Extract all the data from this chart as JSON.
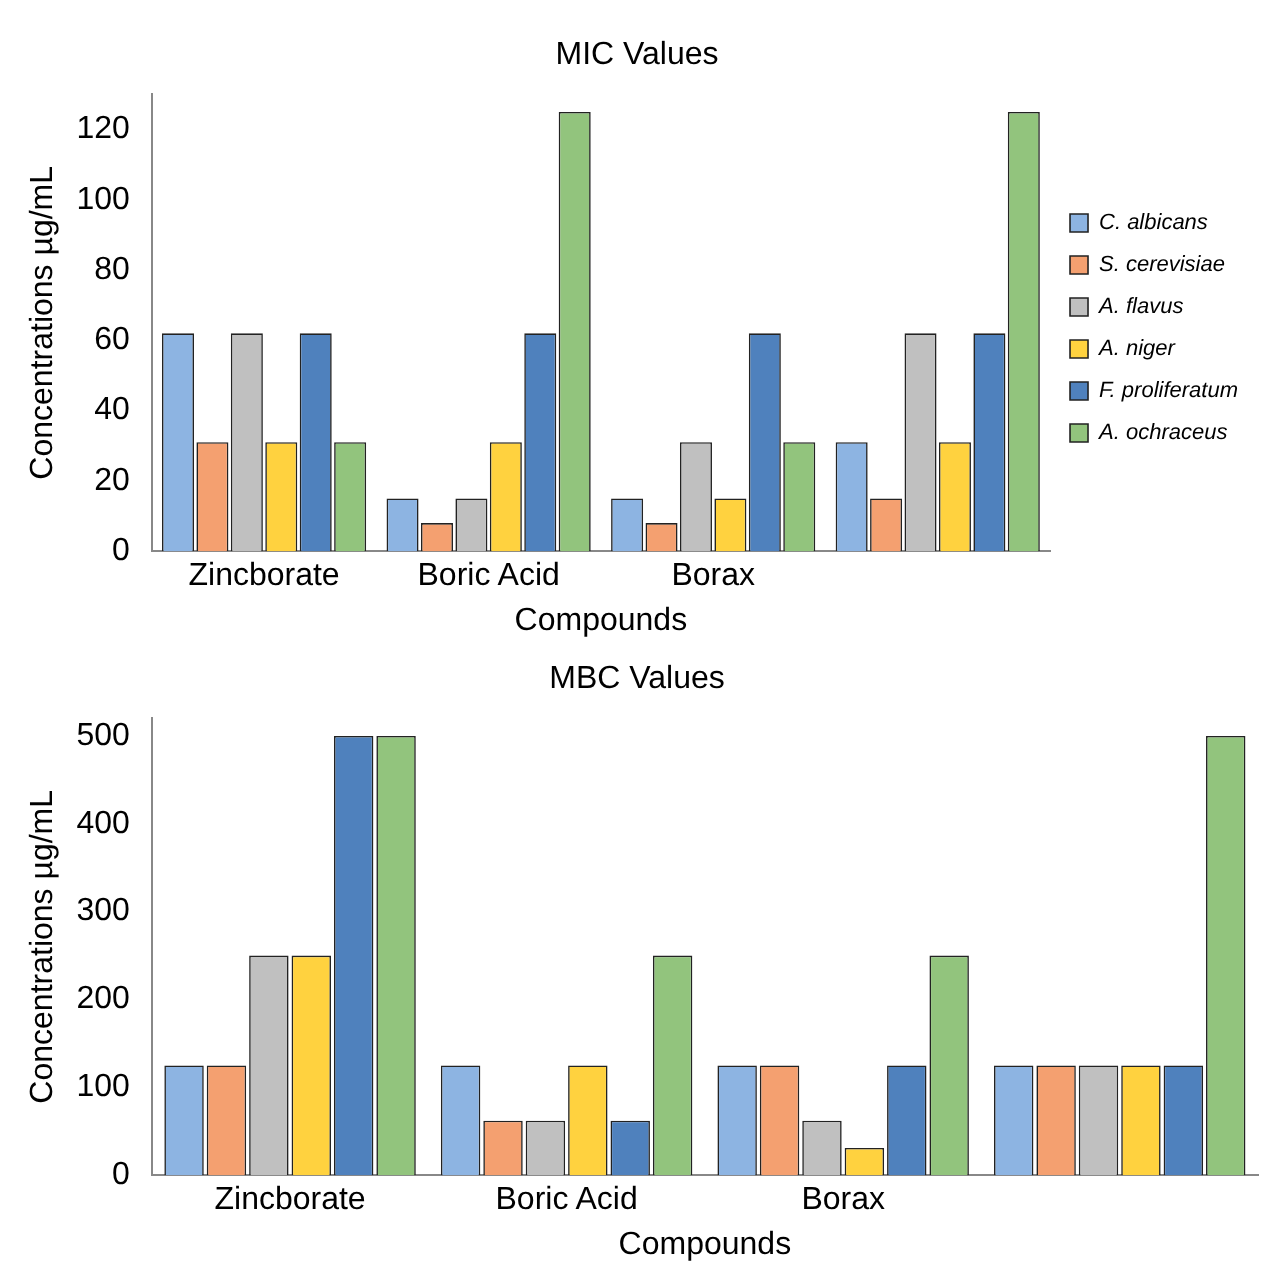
{
  "chart_data": [
    {
      "type": "bar",
      "title": "MIC Values",
      "xlabel": "Compounds",
      "ylabel": "Concentrations µg/mL",
      "categories": [
        "Zincborate",
        "Boric Acid",
        "Borax",
        null
      ],
      "ylim": [
        0,
        130
      ],
      "yticks": [
        0,
        20,
        40,
        60,
        80,
        100,
        120
      ],
      "grid": false,
      "legend": "right",
      "series": [
        {
          "name": "C. albicans",
          "color": "#8db4e2",
          "values": [
            62,
            15,
            15,
            31
          ]
        },
        {
          "name": "S. cerevisiae",
          "color": "#f4a070",
          "values": [
            31,
            8,
            8,
            15
          ]
        },
        {
          "name": "A. flavus",
          "color": "#c0c0c0",
          "values": [
            62,
            15,
            31,
            62
          ]
        },
        {
          "name": "A. niger",
          "color": "#ffd23f",
          "values": [
            31,
            31,
            15,
            31
          ]
        },
        {
          "name": "F. proliferatum",
          "color": "#4f81bd",
          "values": [
            62,
            62,
            62,
            62
          ]
        },
        {
          "name": "A. ochraceus",
          "color": "#92c47d",
          "values": [
            31,
            125,
            31,
            125
          ]
        }
      ]
    },
    {
      "type": "bar",
      "title": "MBC Values",
      "xlabel": "Compounds",
      "ylabel": "Concentrations µg/mL",
      "categories": [
        "Zincborate",
        "Boric Acid",
        "Borax",
        null
      ],
      "ylim": [
        0,
        520
      ],
      "yticks": [
        0,
        100,
        200,
        300,
        400,
        500
      ],
      "grid": false,
      "series": [
        {
          "color": "#8db4e2",
          "values": [
            125,
            125,
            125,
            125
          ]
        },
        {
          "color": "#f4a070",
          "values": [
            125,
            62,
            125,
            125
          ]
        },
        {
          "color": "#c0c0c0",
          "values": [
            250,
            62,
            62,
            125
          ]
        },
        {
          "color": "#ffd23f",
          "values": [
            250,
            125,
            31,
            125
          ]
        },
        {
          "color": "#4f81bd",
          "values": [
            500,
            62,
            125,
            125
          ]
        },
        {
          "color": "#92c47d",
          "values": [
            500,
            250,
            250,
            500
          ]
        }
      ]
    }
  ]
}
